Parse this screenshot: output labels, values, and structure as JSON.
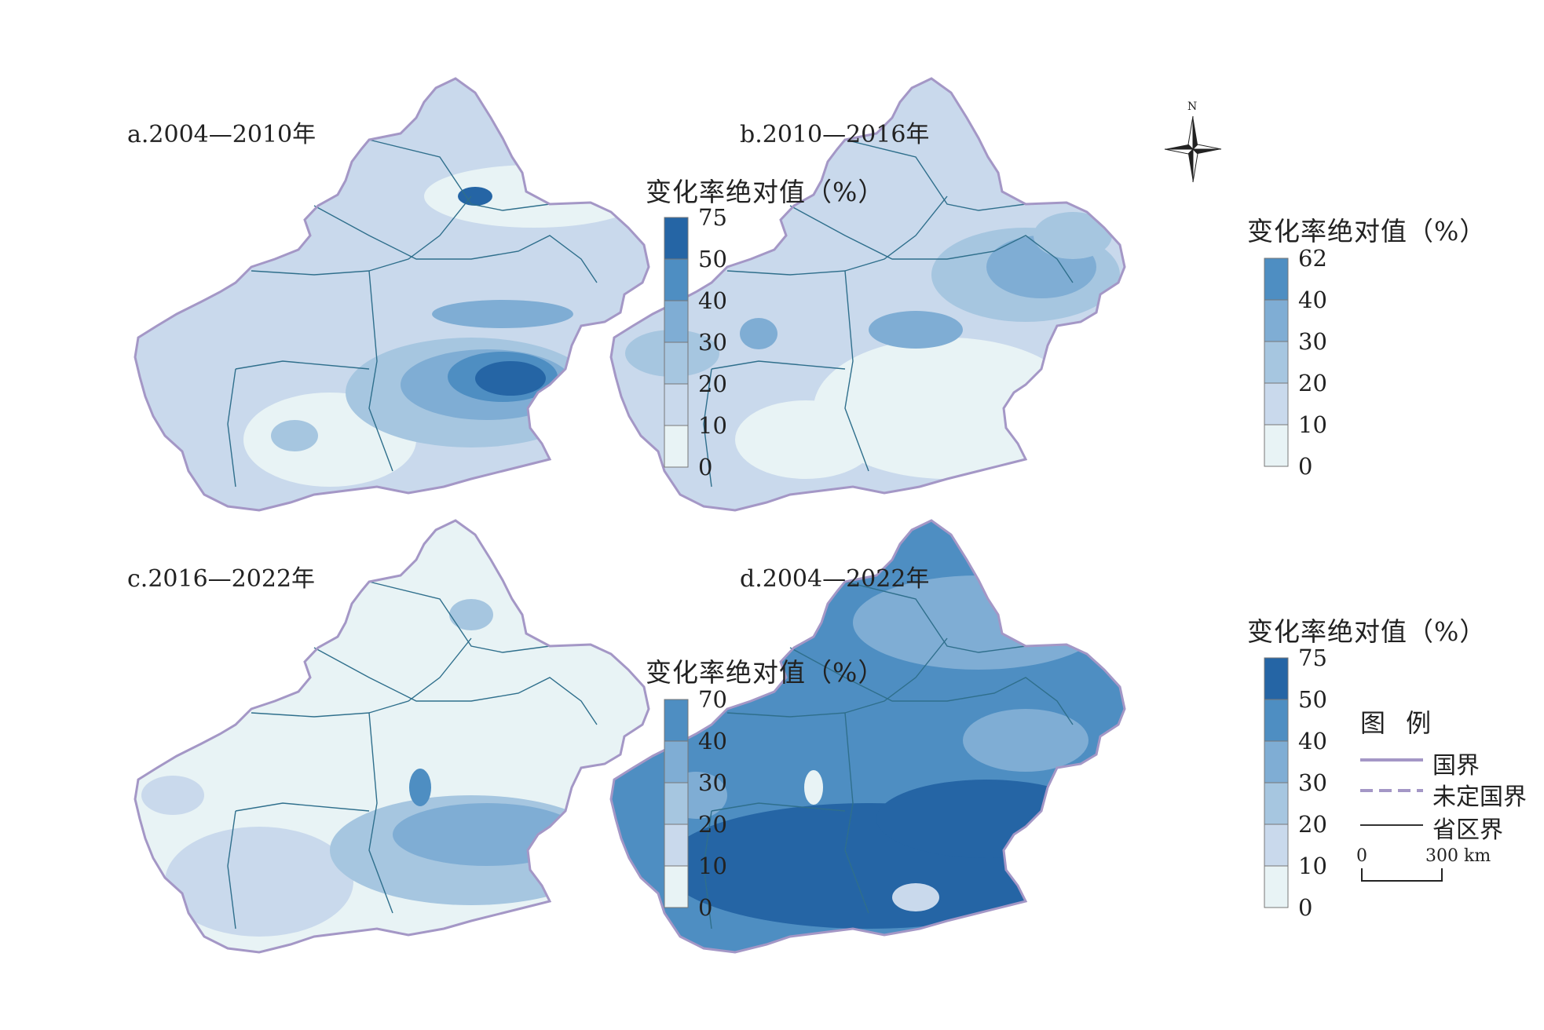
{
  "panels": [
    {
      "title": "a.2004—2010年",
      "legend_title": "变化率绝对值（%）",
      "ticks": [
        "75",
        "50",
        "40",
        "30",
        "20",
        "10",
        "0"
      ]
    },
    {
      "title": "b.2010—2016年",
      "legend_title": "变化率绝对值（%）",
      "ticks": [
        "62",
        "40",
        "30",
        "20",
        "10",
        "0"
      ]
    },
    {
      "title": "c.2016—2022年",
      "legend_title": "变化率绝对值（%）",
      "ticks": [
        "70",
        "40",
        "30",
        "20",
        "10",
        "0"
      ]
    },
    {
      "title": "d.2004—2022年",
      "legend_title": "变化率绝对值（%）",
      "ticks": [
        "75",
        "50",
        "40",
        "30",
        "20",
        "10",
        "0"
      ]
    }
  ],
  "colors": {
    "class_0_10": "#e8f3f5",
    "class_10_20": "#c9d9ec",
    "class_20_30": "#a6c6e0",
    "class_30_40": "#7fadd4",
    "class_40_50": "#4e8ec2",
    "class_50_max": "#2565a5",
    "national_border": "#a497c6",
    "province_border": "#2f6f8c"
  },
  "north_arrow": {
    "label": "N",
    "icon": "north-arrow-icon"
  },
  "key": {
    "title": "图 例",
    "items": [
      {
        "label": "国界",
        "style": "solid-purple"
      },
      {
        "label": "未定国界",
        "style": "dashed-purple"
      },
      {
        "label": "省区界",
        "style": "solid-dark"
      }
    ]
  },
  "scale_bar": {
    "start": "0",
    "end": "300 km"
  }
}
